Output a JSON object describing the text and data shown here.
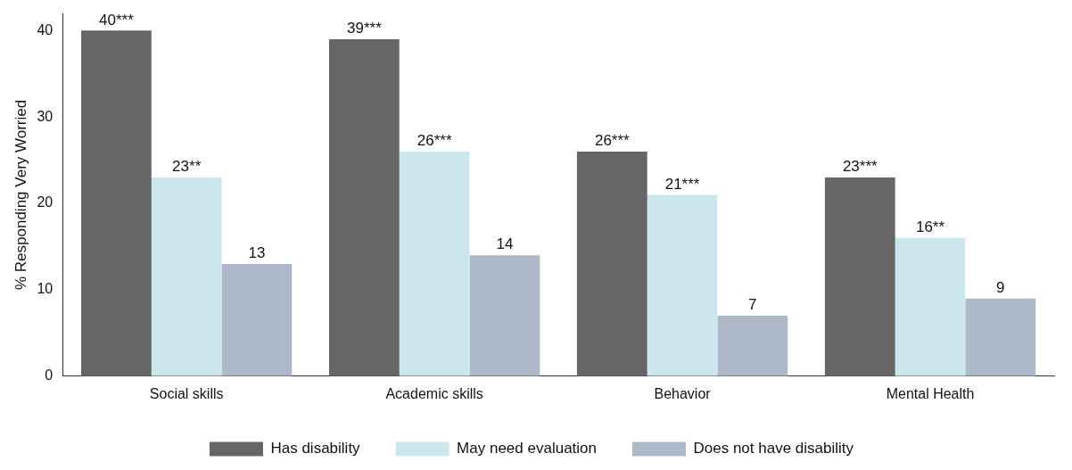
{
  "chart_data": {
    "type": "bar",
    "ylabel": "% Responding Very Worried",
    "categories": [
      "Social skills",
      "Academic skills",
      "Behavior",
      "Mental Health"
    ],
    "series": [
      {
        "name": "Has disability",
        "color": "#666666",
        "values": [
          40,
          39,
          26,
          23
        ],
        "value_labels": [
          "40***",
          "39***",
          "26***",
          "23***"
        ]
      },
      {
        "name": "May need evaluation",
        "color": "#cce6ee",
        "values": [
          23,
          26,
          21,
          16
        ],
        "value_labels": [
          "23**",
          "26***",
          "21***",
          "16**"
        ]
      },
      {
        "name": "Does not have disability",
        "color": "#adb9c9",
        "values": [
          13,
          14,
          7,
          9
        ],
        "value_labels": [
          "13",
          "14",
          "7",
          "9"
        ]
      }
    ],
    "ylim": [
      0,
      42
    ],
    "yticks": [
      0,
      10,
      20,
      30,
      40
    ],
    "grid": false,
    "legend": "bottom"
  }
}
